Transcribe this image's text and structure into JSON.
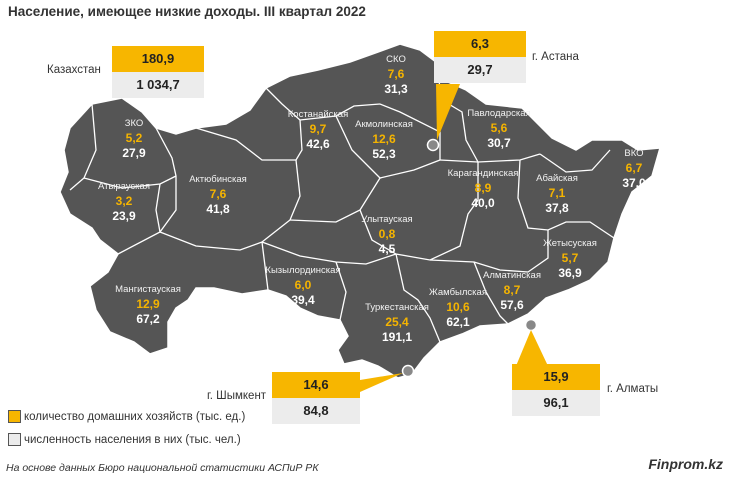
{
  "title": "Население, имеющее низкие доходы. III квартал 2022",
  "colors": {
    "map_fill": "#555555",
    "household_accent": "#f5b400",
    "population_box": "#ececec"
  },
  "regions": [
    {
      "name": "ЗКО",
      "households": "5,2",
      "population": "27,9"
    },
    {
      "name": "Атырауская",
      "households": "3,2",
      "population": "23,9"
    },
    {
      "name": "Мангистауская",
      "households": "12,9",
      "population": "67,2"
    },
    {
      "name": "Актюбинская",
      "households": "7,6",
      "population": "41,8"
    },
    {
      "name": "Костанайская",
      "households": "9,7",
      "population": "42,6"
    },
    {
      "name": "СКО",
      "households": "7,6",
      "population": "31,3"
    },
    {
      "name": "Акмолинская",
      "households": "12,6",
      "population": "52,3"
    },
    {
      "name": "Павлодарская",
      "households": "5,6",
      "population": "30,7"
    },
    {
      "name": "Карагандинская",
      "households": "8,9",
      "population": "40,0"
    },
    {
      "name": "Абайская",
      "households": "7,1",
      "population": "37,8"
    },
    {
      "name": "ВКО",
      "households": "6,7",
      "population": "37,0"
    },
    {
      "name": "Улытауская",
      "households": "0,8",
      "population": "4,5"
    },
    {
      "name": "Кызылординская",
      "households": "6,0",
      "population": "39,4"
    },
    {
      "name": "Туркестанская",
      "households": "25,4",
      "population": "191,1"
    },
    {
      "name": "Жамбылская",
      "households": "10,6",
      "population": "62,1"
    },
    {
      "name": "Алматинская",
      "households": "8,7",
      "population": "57,6"
    },
    {
      "name": "Жетысуская",
      "households": "5,7",
      "population": "36,9"
    }
  ],
  "callouts": {
    "kazakhstan": {
      "label": "Казахстан",
      "households": "180,9",
      "population": "1 034,7"
    },
    "astana": {
      "label": "г. Астана",
      "households": "6,3",
      "population": "29,7"
    },
    "shymkent": {
      "label": "г. Шымкент",
      "households": "14,6",
      "population": "84,8"
    },
    "almaty": {
      "label": "г. Алматы",
      "households": "15,9",
      "population": "96,1"
    }
  },
  "legend": {
    "households": "количество домашних хозяйств (тыс. ед.)",
    "population": "численность населения в них (тыс. чел.)"
  },
  "source": "На основе данных Бюро национальной статистики АСПиР РК",
  "brand": "Finprom.kz"
}
